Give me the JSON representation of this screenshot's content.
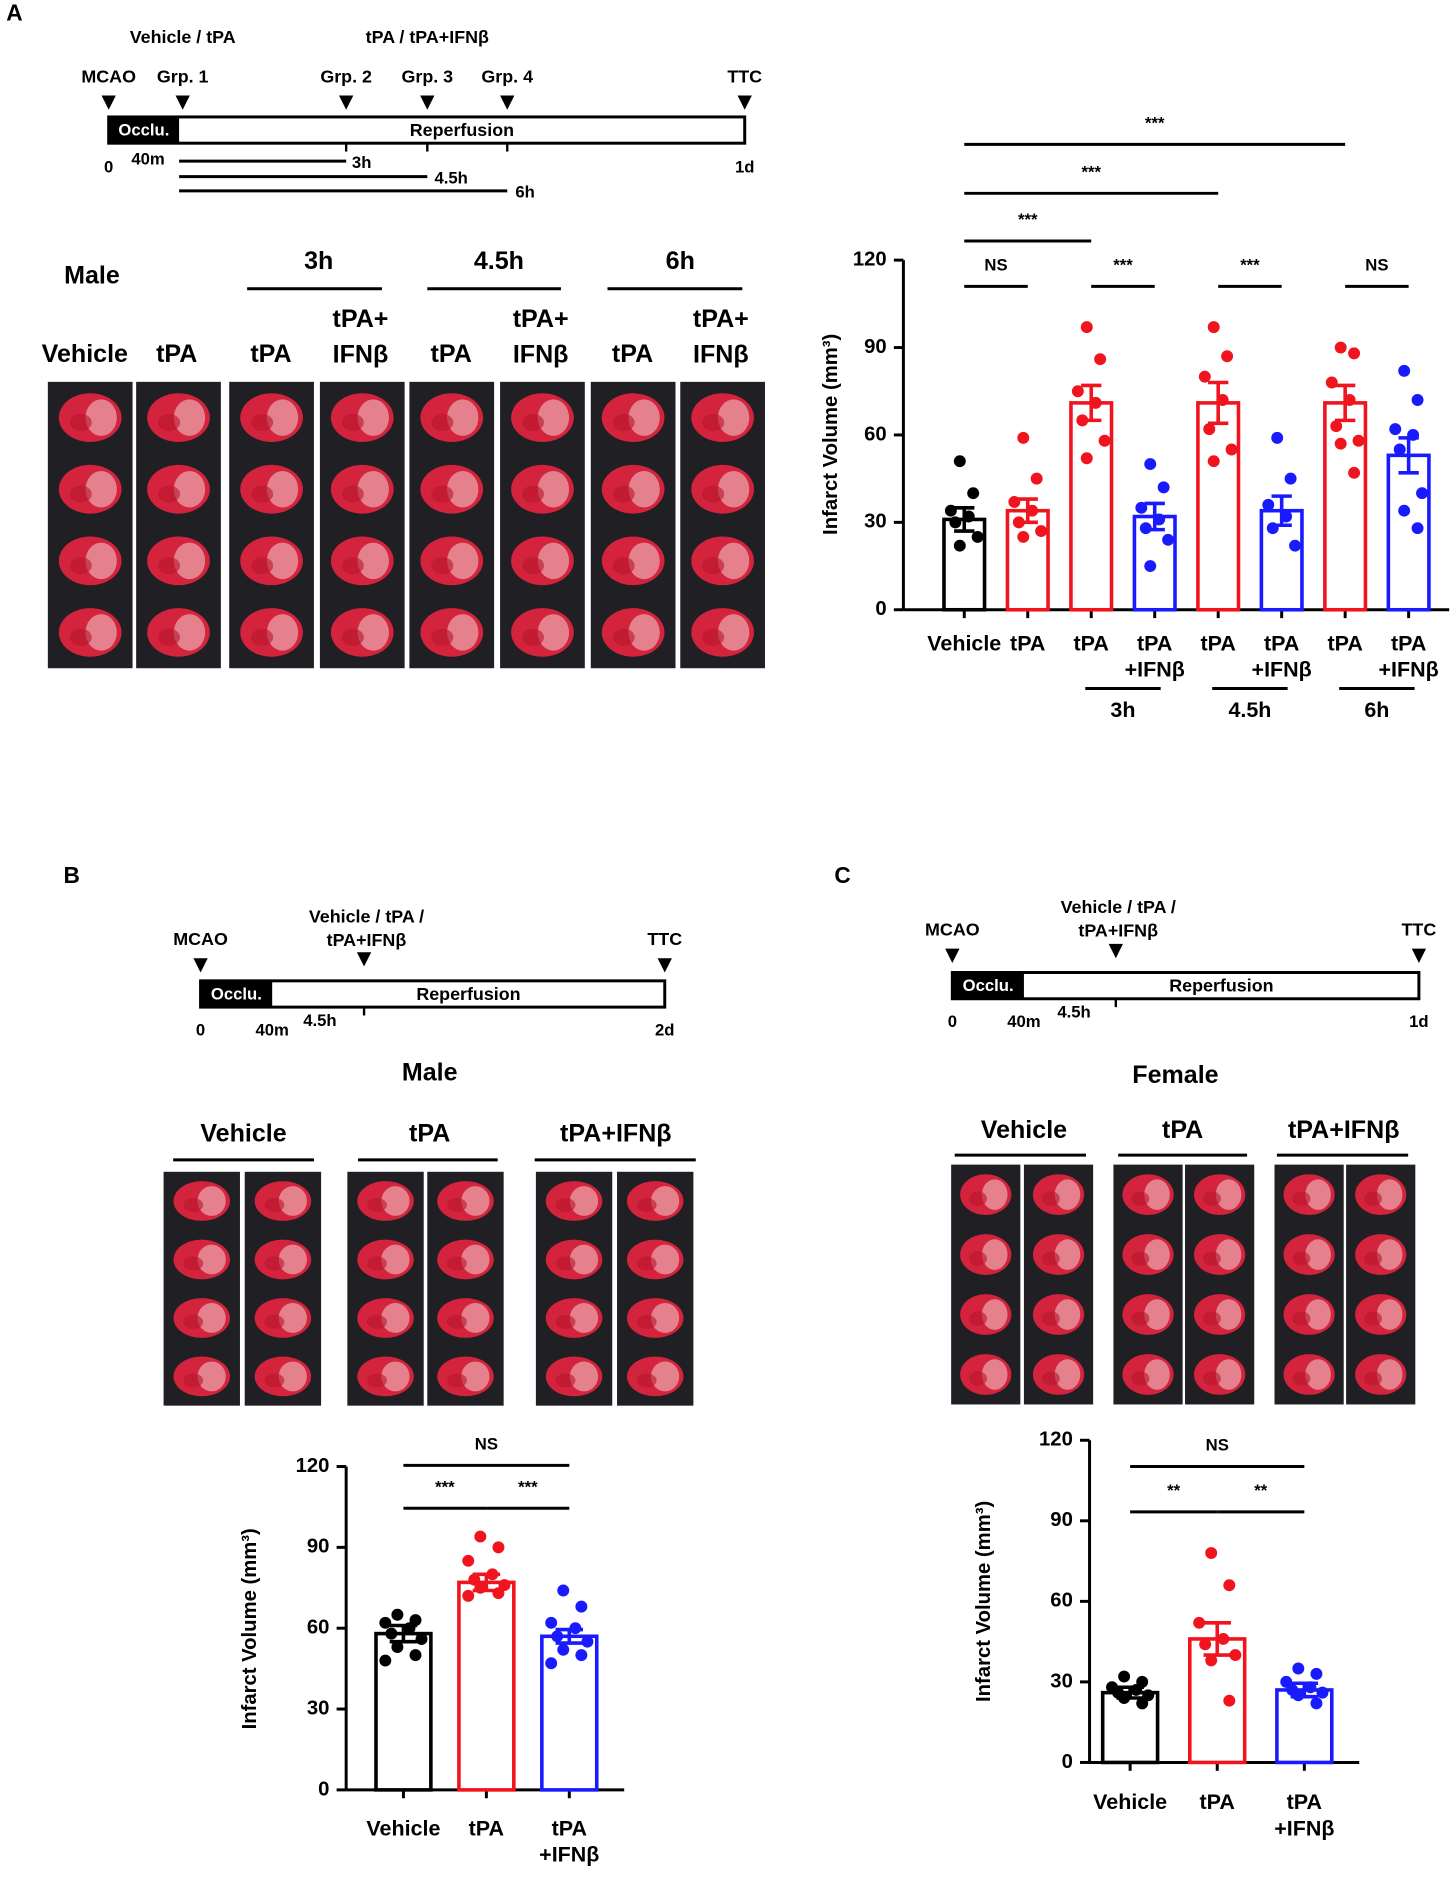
{
  "panel_labels": [
    "A",
    "B",
    "C"
  ],
  "A": {
    "timeline": {
      "top": [
        "Vehicle / tPA",
        "tPA / tPA+IFNβ"
      ],
      "markers": [
        "MCAO",
        "Grp. 1",
        "Grp. 2",
        "Grp. 3",
        "Grp. 4",
        "TTC"
      ],
      "bar": [
        "Occlu.",
        "Reperfusion"
      ],
      "times": [
        "0",
        "40m",
        "1d"
      ],
      "windows": [
        "3h",
        "4.5h",
        "6h"
      ]
    },
    "sex": "Male",
    "groups": [
      "3h",
      "4.5h",
      "6h"
    ],
    "columns": [
      "Vehicle",
      "tPA",
      "tPA",
      "tPA+ IFNβ",
      "tPA",
      "tPA+ IFNβ",
      "tPA",
      "tPA+ IFNβ"
    ]
  },
  "B": {
    "timeline": {
      "markers": [
        "MCAO",
        "TTC"
      ],
      "treatment": [
        "Vehicle / tPA /",
        "tPA+IFNβ"
      ],
      "bar": [
        "Occlu.",
        "Reperfusion"
      ],
      "times": [
        "0",
        "40m",
        "4.5h",
        "2d"
      ]
    },
    "sex": "Male",
    "columns": [
      "Vehicle",
      "tPA",
      "tPA+IFNβ"
    ]
  },
  "C": {
    "timeline": {
      "markers": [
        "MCAO",
        "TTC"
      ],
      "treatment": [
        "Vehicle / tPA /",
        "tPA+IFNβ"
      ],
      "bar": [
        "Occlu.",
        "Reperfusion"
      ],
      "times": [
        "0",
        "40m",
        "4.5h",
        "1d"
      ]
    },
    "sex": "Female",
    "columns": [
      "Vehicle",
      "tPA",
      "tPA+IFNβ"
    ]
  },
  "chart_data": [
    {
      "type": "bar",
      "ylabel": "Infarct Volume (mm³)",
      "categories": [
        "Vehicle",
        "tPA",
        "tPA",
        "tPA +IFNβ",
        "tPA",
        "tPA +IFNβ",
        "tPA",
        "tPA +IFNβ"
      ],
      "values": [
        31,
        34,
        71,
        32,
        71,
        34,
        71,
        53
      ],
      "errors": [
        4,
        4,
        6,
        4.5,
        7,
        5,
        6,
        6
      ],
      "colors": [
        "#000000",
        "#f0141e",
        "#f0141e",
        "#1a1aff",
        "#f0141e",
        "#1a1aff",
        "#f0141e",
        "#1a1aff"
      ],
      "points": [
        [
          51,
          40,
          34,
          32,
          30,
          25,
          22
        ],
        [
          59,
          45,
          37,
          34,
          30,
          27,
          25
        ],
        [
          97,
          86,
          75,
          71,
          65,
          58,
          52
        ],
        [
          50,
          42,
          35,
          31,
          28,
          24,
          15
        ],
        [
          97,
          87,
          80,
          72,
          62,
          55,
          51
        ],
        [
          59,
          45,
          36,
          32,
          28,
          22
        ],
        [
          90,
          88,
          78,
          72,
          63,
          58,
          57,
          47
        ],
        [
          82,
          72,
          62,
          60,
          55,
          40,
          34,
          28
        ]
      ],
      "ylim": [
        0,
        120
      ],
      "yticks": [
        0,
        30,
        60,
        90,
        120
      ],
      "brackets": [
        {
          "from": 0,
          "to": 1,
          "label": "NS"
        },
        {
          "from": 2,
          "to": 3,
          "label": "***"
        },
        {
          "from": 4,
          "to": 5,
          "label": "***"
        },
        {
          "from": 6,
          "to": 7,
          "label": "NS"
        },
        {
          "from": 0,
          "to": 2,
          "label": "***"
        },
        {
          "from": 0,
          "to": 4,
          "label": "***"
        },
        {
          "from": 0,
          "to": 6,
          "label": "***"
        }
      ],
      "groups": [
        {
          "label": "3h",
          "from": 2,
          "to": 3
        },
        {
          "label": "4.5h",
          "from": 4,
          "to": 5
        },
        {
          "label": "6h",
          "from": 6,
          "to": 7
        }
      ]
    },
    {
      "type": "bar",
      "ylabel": "Infarct Volume (mm³)",
      "categories": [
        "Vehicle",
        "tPA",
        "tPA +IFNβ"
      ],
      "values": [
        58,
        77,
        57
      ],
      "errors": [
        3,
        3,
        2.5
      ],
      "colors": [
        "#000000",
        "#f0141e",
        "#1a1aff"
      ],
      "points": [
        [
          65,
          63,
          62,
          60,
          58,
          56,
          53,
          50,
          48
        ],
        [
          94,
          90,
          85,
          80,
          78,
          76,
          75,
          73,
          72
        ],
        [
          74,
          68,
          62,
          60,
          57,
          55,
          52,
          50,
          47
        ]
      ],
      "ylim": [
        0,
        120
      ],
      "yticks": [
        0,
        30,
        60,
        90,
        120
      ],
      "brackets": [
        {
          "from": 0,
          "to": 1,
          "label": "***"
        },
        {
          "from": 1,
          "to": 2,
          "label": "***"
        },
        {
          "from": 0,
          "to": 2,
          "label": "NS"
        }
      ]
    },
    {
      "type": "bar",
      "ylabel": "Infarct Volume (mm³)",
      "categories": [
        "Vehicle",
        "tPA",
        "tPA +IFNβ"
      ],
      "values": [
        26,
        46,
        27
      ],
      "errors": [
        2,
        6,
        2.5
      ],
      "colors": [
        "#000000",
        "#f0141e",
        "#1a1aff"
      ],
      "points": [
        [
          32,
          30,
          28,
          27,
          26,
          25,
          24,
          22
        ],
        [
          78,
          66,
          52,
          46,
          44,
          40,
          38,
          23
        ],
        [
          35,
          33,
          30,
          28,
          27,
          26,
          25,
          22
        ]
      ],
      "ylim": [
        0,
        120
      ],
      "yticks": [
        0,
        30,
        60,
        90,
        120
      ],
      "brackets": [
        {
          "from": 0,
          "to": 1,
          "label": "**"
        },
        {
          "from": 1,
          "to": 2,
          "label": "**"
        },
        {
          "from": 0,
          "to": 2,
          "label": "NS"
        }
      ]
    }
  ]
}
